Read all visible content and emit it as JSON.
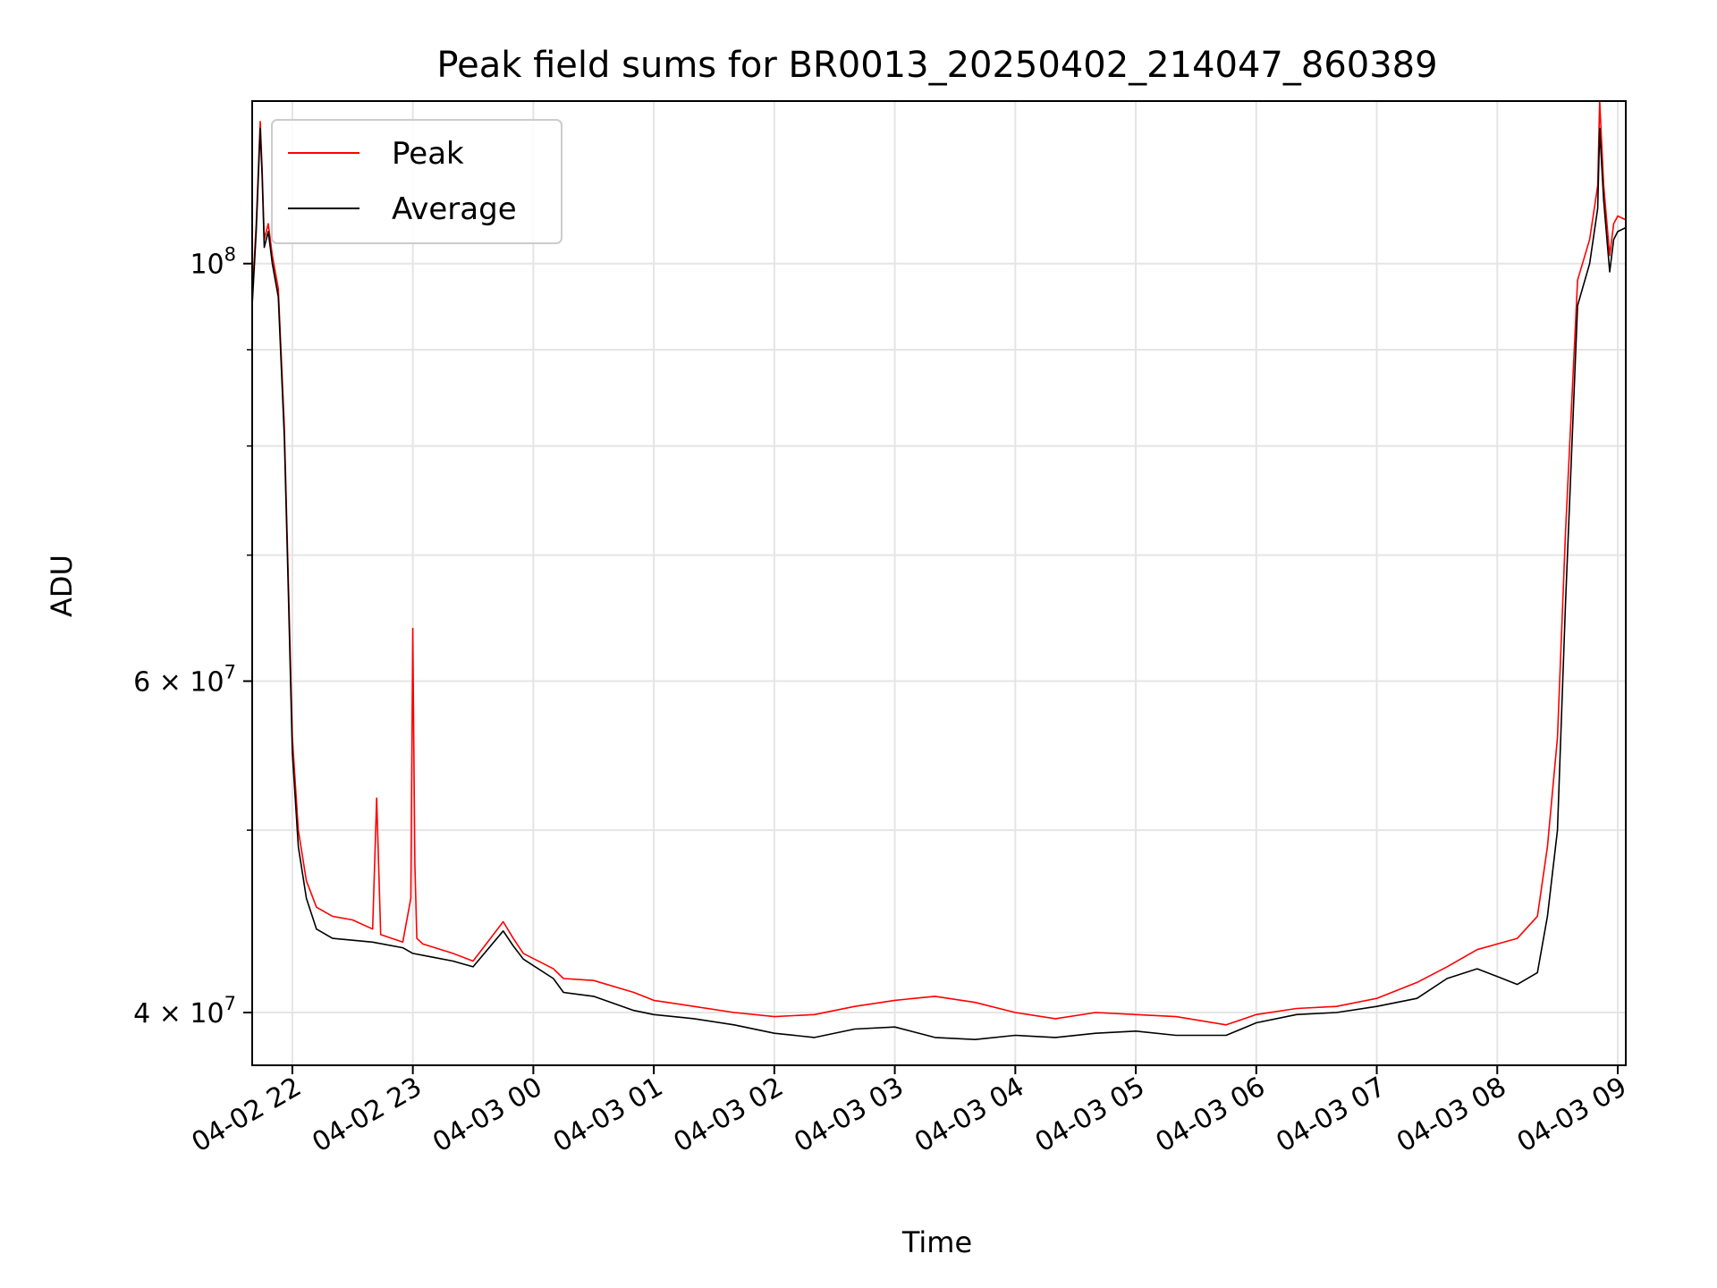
{
  "chart_data": {
    "type": "line",
    "title": "Peak field sums for BR0013_20250402_214047_860389",
    "xlabel": "Time",
    "ylabel": "ADU",
    "y_scale": "log",
    "ylim": [
      37500000,
      122000000
    ],
    "xlim": [
      "2025-04-02T21:40:00",
      "2025-04-03T09:04:00"
    ],
    "grid": true,
    "legend_position": "top-left",
    "x_ticks": [
      {
        "value": "2025-04-02T22:00:00",
        "label": "04-02 22"
      },
      {
        "value": "2025-04-02T23:00:00",
        "label": "04-02 23"
      },
      {
        "value": "2025-04-03T00:00:00",
        "label": "04-03 00"
      },
      {
        "value": "2025-04-03T01:00:00",
        "label": "04-03 01"
      },
      {
        "value": "2025-04-03T02:00:00",
        "label": "04-03 02"
      },
      {
        "value": "2025-04-03T03:00:00",
        "label": "04-03 03"
      },
      {
        "value": "2025-04-03T04:00:00",
        "label": "04-03 04"
      },
      {
        "value": "2025-04-03T05:00:00",
        "label": "04-03 05"
      },
      {
        "value": "2025-04-03T06:00:00",
        "label": "04-03 06"
      },
      {
        "value": "2025-04-03T07:00:00",
        "label": "04-03 07"
      },
      {
        "value": "2025-04-03T08:00:00",
        "label": "04-03 08"
      },
      {
        "value": "2025-04-03T09:00:00",
        "label": "04-03 09"
      }
    ],
    "y_ticks_major": [
      {
        "value": 40000000,
        "mantissa": "4",
        "exponent": "7"
      },
      {
        "value": 60000000,
        "mantissa": "6",
        "exponent": "7"
      },
      {
        "value": 100000000,
        "mantissa": "",
        "exponent": "8"
      }
    ],
    "y_ticks_minor": [
      50000000,
      70000000,
      80000000,
      90000000
    ],
    "series": [
      {
        "name": "Peak",
        "color": "#ff0000",
        "x": [
          "2025-04-02T21:40:00",
          "2025-04-02T21:42:00",
          "2025-04-02T21:44:00",
          "2025-04-02T21:45:00",
          "2025-04-02T21:46:00",
          "2025-04-02T21:48:00",
          "2025-04-02T21:50:00",
          "2025-04-02T21:53:00",
          "2025-04-02T21:56:00",
          "2025-04-02T21:58:00",
          "2025-04-02T22:00:00",
          "2025-04-02T22:03:00",
          "2025-04-02T22:07:00",
          "2025-04-02T22:12:00",
          "2025-04-02T22:20:00",
          "2025-04-02T22:30:00",
          "2025-04-02T22:40:00",
          "2025-04-02T22:42:00",
          "2025-04-02T22:44:00",
          "2025-04-02T22:55:00",
          "2025-04-02T22:59:00",
          "2025-04-02T23:00:00",
          "2025-04-02T23:01:00",
          "2025-04-02T23:02:00",
          "2025-04-02T23:05:00",
          "2025-04-02T23:20:00",
          "2025-04-02T23:30:00",
          "2025-04-02T23:45:00",
          "2025-04-02T23:50:00",
          "2025-04-02T23:55:00",
          "2025-04-03T00:10:00",
          "2025-04-03T00:15:00",
          "2025-04-03T00:30:00",
          "2025-04-03T00:50:00",
          "2025-04-03T01:00:00",
          "2025-04-03T01:20:00",
          "2025-04-03T01:40:00",
          "2025-04-03T02:00:00",
          "2025-04-03T02:20:00",
          "2025-04-03T02:40:00",
          "2025-04-03T03:00:00",
          "2025-04-03T03:20:00",
          "2025-04-03T03:40:00",
          "2025-04-03T04:00:00",
          "2025-04-03T04:20:00",
          "2025-04-03T04:40:00",
          "2025-04-03T05:00:00",
          "2025-04-03T05:20:00",
          "2025-04-03T05:45:00",
          "2025-04-03T06:00:00",
          "2025-04-03T06:20:00",
          "2025-04-03T06:40:00",
          "2025-04-03T07:00:00",
          "2025-04-03T07:20:00",
          "2025-04-03T07:35:00",
          "2025-04-03T07:50:00",
          "2025-04-03T08:00:00",
          "2025-04-03T08:10:00",
          "2025-04-03T08:20:00",
          "2025-04-03T08:25:00",
          "2025-04-03T08:30:00",
          "2025-04-03T08:34:00",
          "2025-04-03T08:40:00",
          "2025-04-03T08:46:00",
          "2025-04-03T08:50:00",
          "2025-04-03T08:51:00",
          "2025-04-03T08:53:00",
          "2025-04-03T08:56:00",
          "2025-04-03T08:58:00",
          "2025-04-03T09:00:00",
          "2025-04-03T09:04:00"
        ],
        "y": [
          96000000,
          105000000,
          119000000,
          112000000,
          103000000,
          105000000,
          101000000,
          97000000,
          82000000,
          68000000,
          56000000,
          50000000,
          47000000,
          45500000,
          45000000,
          44800000,
          44300000,
          52000000,
          44000000,
          43600000,
          46000000,
          64000000,
          48000000,
          43800000,
          43500000,
          43000000,
          42600000,
          44700000,
          43800000,
          43000000,
          42200000,
          41700000,
          41600000,
          41000000,
          40600000,
          40300000,
          40000000,
          39800000,
          39900000,
          40300000,
          40600000,
          40800000,
          40500000,
          40000000,
          39700000,
          40000000,
          39900000,
          39800000,
          39400000,
          39900000,
          40200000,
          40300000,
          40700000,
          41500000,
          42300000,
          43200000,
          43500000,
          43800000,
          45000000,
          49000000,
          56000000,
          72000000,
          98000000,
          103000000,
          110000000,
          122000000,
          110000000,
          101000000,
          105000000,
          106000000,
          105500000
        ]
      },
      {
        "name": "Average",
        "color": "#000000",
        "x": [
          "2025-04-02T21:40:00",
          "2025-04-02T21:42:00",
          "2025-04-02T21:44:00",
          "2025-04-02T21:45:00",
          "2025-04-02T21:46:00",
          "2025-04-02T21:48:00",
          "2025-04-02T21:50:00",
          "2025-04-02T21:53:00",
          "2025-04-02T21:56:00",
          "2025-04-02T21:58:00",
          "2025-04-02T22:00:00",
          "2025-04-02T22:03:00",
          "2025-04-02T22:07:00",
          "2025-04-02T22:12:00",
          "2025-04-02T22:20:00",
          "2025-04-02T22:30:00",
          "2025-04-02T22:40:00",
          "2025-04-02T22:55:00",
          "2025-04-02T23:00:00",
          "2025-04-02T23:10:00",
          "2025-04-02T23:20:00",
          "2025-04-02T23:30:00",
          "2025-04-02T23:45:00",
          "2025-04-02T23:50:00",
          "2025-04-02T23:55:00",
          "2025-04-03T00:10:00",
          "2025-04-03T00:15:00",
          "2025-04-03T00:30:00",
          "2025-04-03T00:50:00",
          "2025-04-03T01:00:00",
          "2025-04-03T01:20:00",
          "2025-04-03T01:40:00",
          "2025-04-03T02:00:00",
          "2025-04-03T02:20:00",
          "2025-04-03T02:40:00",
          "2025-04-03T03:00:00",
          "2025-04-03T03:20:00",
          "2025-04-03T03:40:00",
          "2025-04-03T04:00:00",
          "2025-04-03T04:20:00",
          "2025-04-03T04:40:00",
          "2025-04-03T05:00:00",
          "2025-04-03T05:20:00",
          "2025-04-03T05:45:00",
          "2025-04-03T06:00:00",
          "2025-04-03T06:20:00",
          "2025-04-03T06:40:00",
          "2025-04-03T07:00:00",
          "2025-04-03T07:20:00",
          "2025-04-03T07:35:00",
          "2025-04-03T07:50:00",
          "2025-04-03T08:00:00",
          "2025-04-03T08:10:00",
          "2025-04-03T08:20:00",
          "2025-04-03T08:25:00",
          "2025-04-03T08:30:00",
          "2025-04-03T08:34:00",
          "2025-04-03T08:40:00",
          "2025-04-03T08:46:00",
          "2025-04-03T08:50:00",
          "2025-04-03T08:51:00",
          "2025-04-03T08:53:00",
          "2025-04-03T08:56:00",
          "2025-04-03T08:58:00",
          "2025-04-03T09:00:00",
          "2025-04-03T09:04:00"
        ],
        "y": [
          95000000,
          104000000,
          118000000,
          111000000,
          102000000,
          104000000,
          100000000,
          96000000,
          81000000,
          67000000,
          55000000,
          49000000,
          46000000,
          44300000,
          43800000,
          43700000,
          43600000,
          43300000,
          43000000,
          42800000,
          42600000,
          42300000,
          44200000,
          43400000,
          42700000,
          41700000,
          41000000,
          40800000,
          40100000,
          39900000,
          39700000,
          39400000,
          39000000,
          38800000,
          39200000,
          39300000,
          38800000,
          38700000,
          38900000,
          38800000,
          39000000,
          39100000,
          38900000,
          38900000,
          39500000,
          39900000,
          40000000,
          40300000,
          40700000,
          41700000,
          42200000,
          41800000,
          41400000,
          42000000,
          45000000,
          50000000,
          66000000,
          95000000,
          100000000,
          107000000,
          118000000,
          108000000,
          99000000,
          103000000,
          104000000,
          104500000
        ]
      }
    ]
  }
}
